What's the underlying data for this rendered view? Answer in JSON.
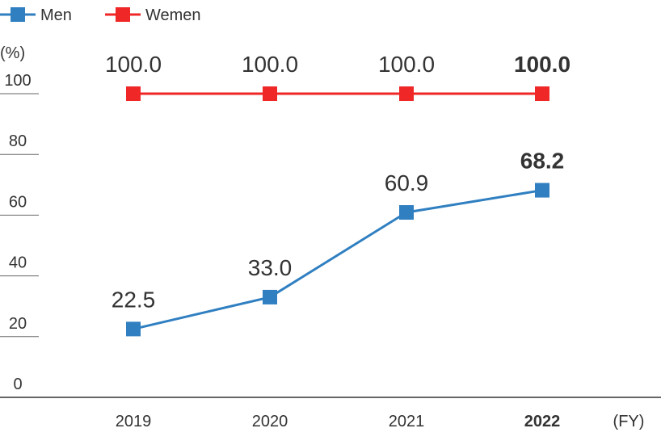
{
  "chart_data": {
    "type": "line",
    "categories": [
      "2019",
      "2020",
      "2021",
      "2022"
    ],
    "highlight_category": "2022",
    "ylabel": "(%)",
    "xlabel": "(FY)",
    "ylim": [
      0,
      100
    ],
    "yticks": [
      "0",
      "20",
      "40",
      "60",
      "80",
      "100"
    ],
    "legend_position": "top-left",
    "series": [
      {
        "name": "Men",
        "color": "#2f7fc1",
        "values": [
          22.5,
          33.0,
          60.9,
          68.2
        ],
        "labels": [
          "22.5",
          "33.0",
          "60.9",
          "68.2"
        ]
      },
      {
        "name": "Wemen",
        "color": "#ef2727",
        "values": [
          100.0,
          100.0,
          100.0,
          100.0
        ],
        "labels": [
          "100.0",
          "100.0",
          "100.0",
          "100.0"
        ]
      }
    ]
  }
}
